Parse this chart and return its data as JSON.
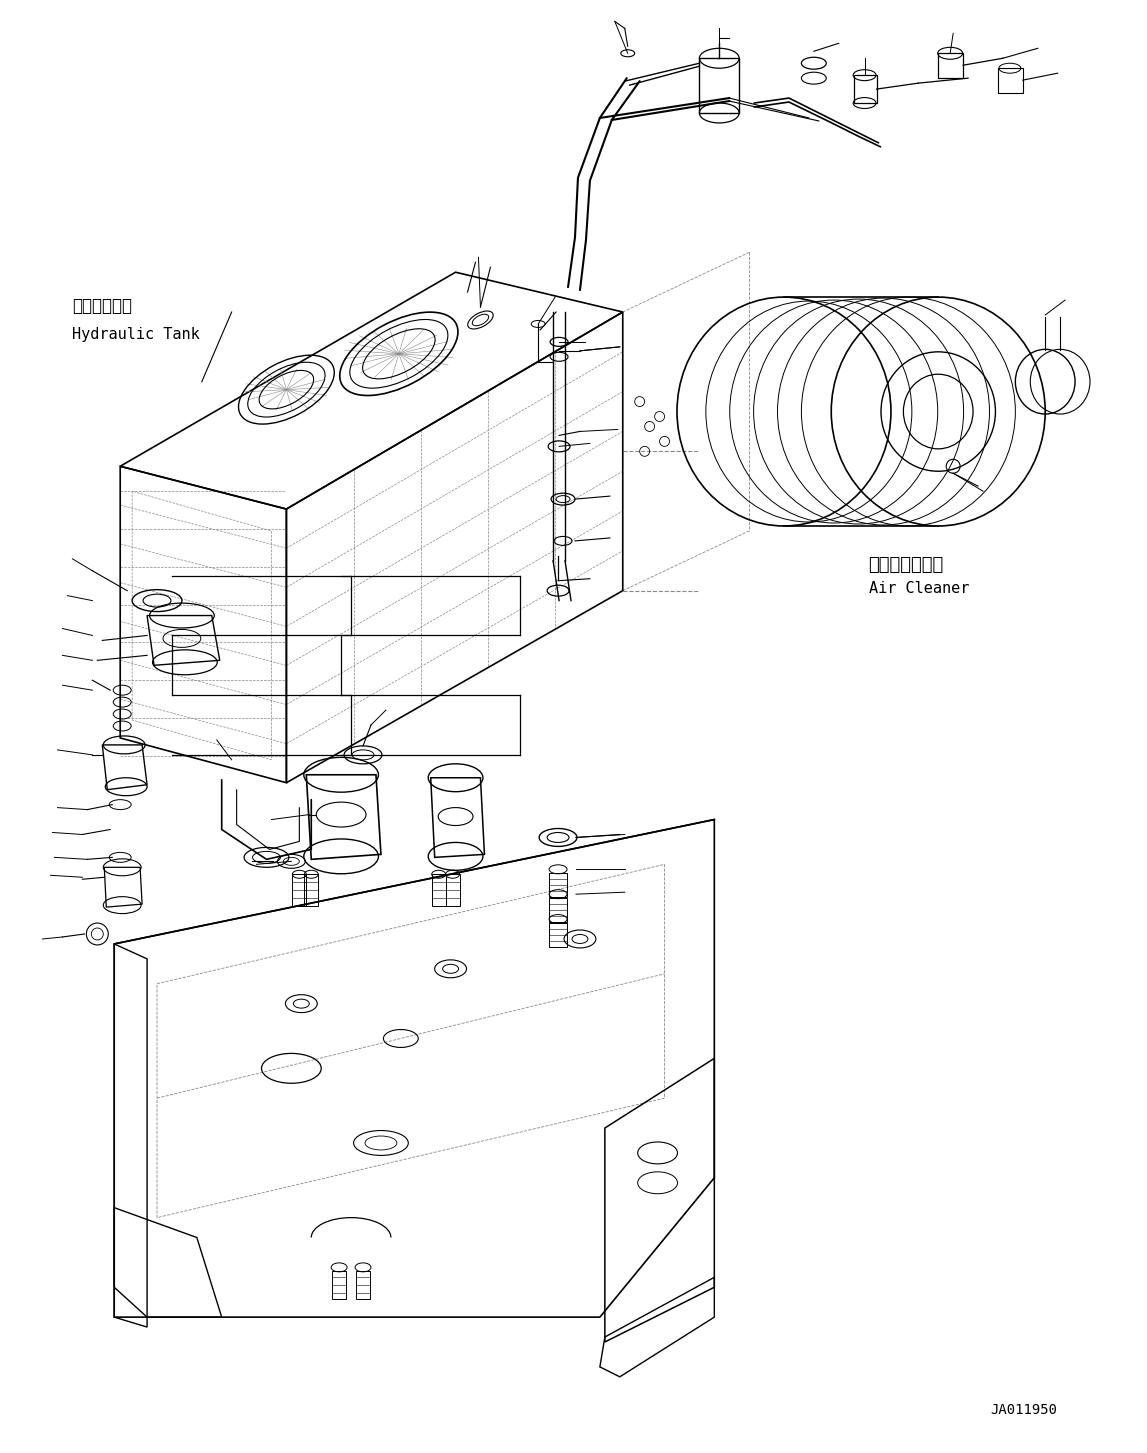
{
  "background_color": "#ffffff",
  "fig_width": 11.47,
  "fig_height": 14.53,
  "dpi": 100,
  "labels": {
    "hydraulic_tank_jp": "作動油タンク",
    "hydraulic_tank_en": "Hydraulic Tank",
    "air_cleaner_jp": "エアークリーナ",
    "air_cleaner_en": "Air Cleaner",
    "part_number": "JA011950"
  },
  "lc": "#000000",
  "lw": 0.8,
  "font_size": 9,
  "font_size_pn": 8
}
